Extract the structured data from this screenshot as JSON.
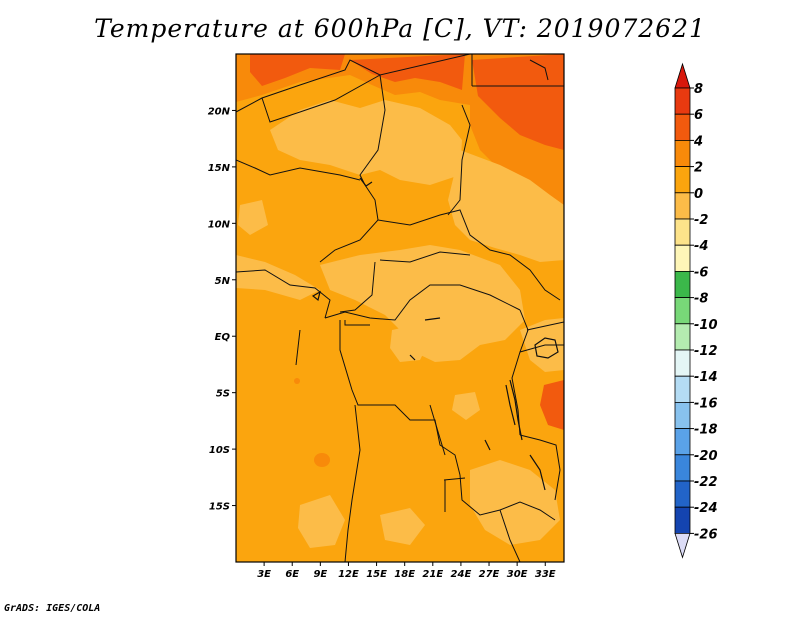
{
  "title": "Temperature at 600hPa [C], VT: 2019072621",
  "credit": "GrADS: IGES/COLA",
  "map": {
    "lon_range": [
      0,
      35
    ],
    "lat_range": [
      -20,
      25
    ],
    "lat_ticks": [
      {
        "value": 20,
        "label": "20N"
      },
      {
        "value": 15,
        "label": "15N"
      },
      {
        "value": 10,
        "label": "10N"
      },
      {
        "value": 5,
        "label": "5N"
      },
      {
        "value": 0,
        "label": "EQ"
      },
      {
        "value": -5,
        "label": "5S"
      },
      {
        "value": -10,
        "label": "10S"
      },
      {
        "value": -15,
        "label": "15S"
      }
    ],
    "lon_ticks": [
      {
        "value": 3,
        "label": "3E"
      },
      {
        "value": 6,
        "label": "6E"
      },
      {
        "value": 9,
        "label": "9E"
      },
      {
        "value": 12,
        "label": "12E"
      },
      {
        "value": 15,
        "label": "15E"
      },
      {
        "value": 18,
        "label": "18E"
      },
      {
        "value": 21,
        "label": "21E"
      },
      {
        "value": 24,
        "label": "24E"
      },
      {
        "value": 27,
        "label": "27E"
      },
      {
        "value": 30,
        "label": "30E"
      },
      {
        "value": 33,
        "label": "33E"
      }
    ]
  },
  "colorbar": {
    "levels": [
      {
        "label": "8",
        "color": "#e83a10"
      },
      {
        "label": "6",
        "color": "#f25a0e"
      },
      {
        "label": "4",
        "color": "#f88a0a"
      },
      {
        "label": "2",
        "color": "#fba50e"
      },
      {
        "label": "0",
        "color": "#fcbc48"
      },
      {
        "label": "-2",
        "color": "#fde38a"
      },
      {
        "label": "-4",
        "color": "#fef6b8"
      },
      {
        "label": "-6",
        "color": "#3bb84a"
      },
      {
        "label": "-8",
        "color": "#78d878"
      },
      {
        "label": "-10",
        "color": "#b4ecb0"
      },
      {
        "label": "-12",
        "color": "#e4f6f6"
      },
      {
        "label": "-14",
        "color": "#b4dcf4"
      },
      {
        "label": "-16",
        "color": "#88c2ee"
      },
      {
        "label": "-18",
        "color": "#5aa2e8"
      },
      {
        "label": "-20",
        "color": "#3a86dc"
      },
      {
        "label": "-22",
        "color": "#2264c8"
      },
      {
        "label": "-24",
        "color": "#1444b0"
      },
      {
        "label": "-26",
        "color": "#0e2490"
      }
    ],
    "top_color": "#d8180c",
    "bottom_color": "#dcdcf6"
  }
}
